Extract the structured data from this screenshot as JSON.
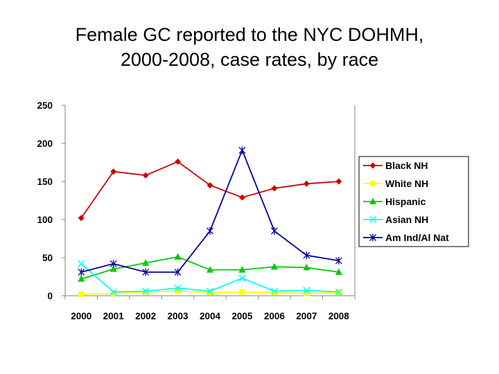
{
  "title_line1": "Female GC reported to the NYC DOHMH,",
  "title_line2": "2000-2008, case rates, by race",
  "chart_data": {
    "type": "line",
    "title": "Female GC reported to the NYC DOHMH, 2000-2008, case rates, by race",
    "categories": [
      "2000",
      "2001",
      "2002",
      "2003",
      "2004",
      "2005",
      "2006",
      "2007",
      "2008"
    ],
    "ylim": [
      0,
      250
    ],
    "yticks": [
      0,
      50,
      100,
      150,
      200,
      250
    ],
    "grid": false,
    "legend": "right",
    "series": [
      {
        "name": "Black NH",
        "color": "#cc0000",
        "marker": "diamond",
        "values": [
          102,
          163,
          158,
          176,
          145,
          129,
          141,
          147,
          150
        ]
      },
      {
        "name": "White NH",
        "color": "#ffff00",
        "marker": "square",
        "values": [
          2,
          3,
          5,
          6,
          4,
          5,
          4,
          3,
          4
        ]
      },
      {
        "name": "Hispanic",
        "color": "#00cc00",
        "marker": "triangle",
        "values": [
          22,
          35,
          43,
          51,
          34,
          34,
          38,
          37,
          31
        ]
      },
      {
        "name": "Asian NH",
        "color": "#00ffff",
        "marker": "x",
        "values": [
          42,
          5,
          6,
          10,
          6,
          23,
          6,
          7,
          5
        ]
      },
      {
        "name": "Am Ind/Al Nat",
        "color": "#000099",
        "marker": "star",
        "values": [
          31,
          42,
          31,
          31,
          85,
          191,
          85,
          53,
          46
        ]
      }
    ]
  }
}
